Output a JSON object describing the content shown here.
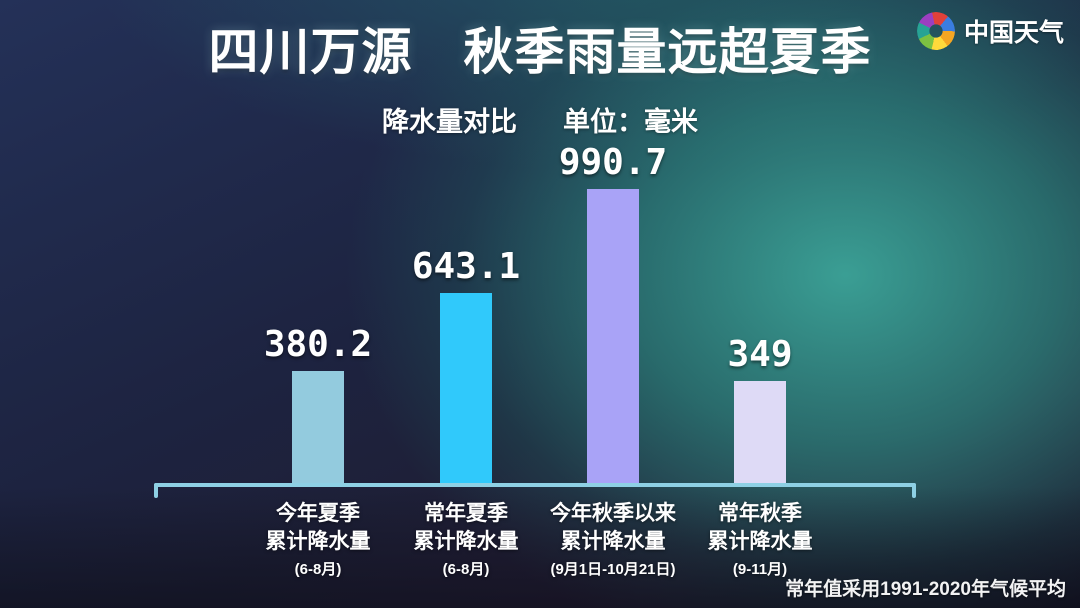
{
  "header": {
    "title": "四川万源　秋季雨量远超夏季",
    "brand_name": "中国天气",
    "logo_colors": [
      "#e0413a",
      "#3a7de0",
      "#f5a623",
      "#ffd93b",
      "#7cc142",
      "#27a395",
      "#9b3fc0"
    ]
  },
  "subtitle": {
    "chart_label": "降水量对比",
    "unit_label": "单位：毫米"
  },
  "colors": {
    "axis": "#8ed0e4",
    "bar_summer_this_year": "#93cbde",
    "bar_summer_normal": "#30c9fb",
    "bar_autumn_this_year": "#a9a3f7",
    "bar_autumn_normal": "#dedaf6"
  },
  "chart_data": {
    "type": "bar",
    "title": "降水量对比",
    "unit": "毫米",
    "ylim": [
      0,
      1100
    ],
    "grid": false,
    "legend": "none",
    "bars": [
      {
        "value": 380.2,
        "color": "#93cbde",
        "label_line1": "今年夏季",
        "label_line2": "累计降水量",
        "label_line3": "(6-8月)"
      },
      {
        "value": 643.1,
        "color": "#30c9fb",
        "label_line1": "常年夏季",
        "label_line2": "累计降水量",
        "label_line3": "(6-8月)"
      },
      {
        "value": 990.7,
        "color": "#a9a3f7",
        "label_line1": "今年秋季以来",
        "label_line2": "累计降水量",
        "label_line3": "(9月1日-10月21日)"
      },
      {
        "value": 349,
        "color": "#dedaf6",
        "label_line1": "常年秋季",
        "label_line2": "累计降水量",
        "label_line3": "(9-11月)"
      }
    ]
  },
  "footer": {
    "note": "常年值采用1991-2020年气候平均"
  }
}
